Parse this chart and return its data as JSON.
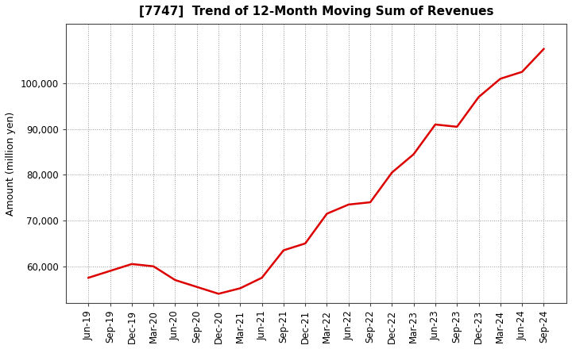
{
  "title": "[7747]  Trend of 12-Month Moving Sum of Revenues",
  "ylabel": "Amount (million yen)",
  "line_color": "#dd0000",
  "bg_color": "#ffffff",
  "plot_bg_color": "#ffffff",
  "grid_color": "#999999",
  "spine_color": "#444444",
  "x_labels": [
    "Jun-19",
    "Sep-19",
    "Dec-19",
    "Mar-20",
    "Jun-20",
    "Sep-20",
    "Dec-20",
    "Mar-21",
    "Jun-21",
    "Sep-21",
    "Dec-21",
    "Mar-22",
    "Jun-22",
    "Sep-22",
    "Dec-22",
    "Mar-23",
    "Jun-23",
    "Sep-23",
    "Dec-23",
    "Mar-24",
    "Jun-24",
    "Sep-24"
  ],
  "values": [
    57500,
    59000,
    60500,
    60000,
    57000,
    55500,
    54000,
    55200,
    57500,
    63500,
    65000,
    71500,
    73500,
    74000,
    80500,
    84500,
    91000,
    90500,
    97000,
    101000,
    102500,
    107500
  ],
  "ylim_min": 52000,
  "ylim_max": 113000,
  "yticks": [
    60000,
    70000,
    80000,
    90000,
    100000
  ],
  "title_fontsize": 11,
  "ylabel_fontsize": 9,
  "tick_fontsize": 8.5
}
